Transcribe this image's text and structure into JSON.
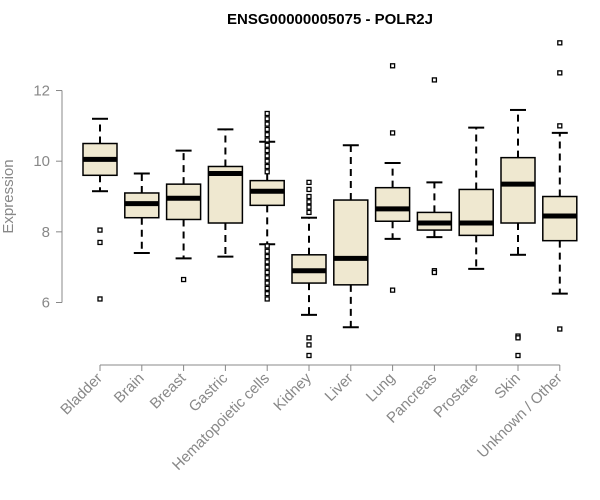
{
  "chart_data": {
    "type": "boxplot",
    "title": "ENSG00000005075 - POLR2J",
    "xlabel": "",
    "ylabel": "Expression",
    "ylim": [
      4.3,
      13.6
    ],
    "yticks": [
      6,
      8,
      10,
      12
    ],
    "colors": {
      "box_fill": "#efe8d0",
      "stroke": "#000000",
      "axis": "#888888"
    },
    "categories": [
      "Bladder",
      "Brain",
      "Breast",
      "Gastric",
      "Hematopoietic cells",
      "Kidney",
      "Liver",
      "Lung",
      "Pancreas",
      "Prostate",
      "Skin",
      "Unknown / Other"
    ],
    "boxes": [
      {
        "category": "Bladder",
        "whisker_low": 9.15,
        "q1": 9.6,
        "median": 10.05,
        "q3": 10.5,
        "whisker_high": 11.2,
        "outliers": [
          8.05,
          7.7,
          6.1
        ]
      },
      {
        "category": "Brain",
        "whisker_low": 7.4,
        "q1": 8.4,
        "median": 8.8,
        "q3": 9.1,
        "whisker_high": 9.65,
        "outliers": []
      },
      {
        "category": "Breast",
        "whisker_low": 7.25,
        "q1": 8.35,
        "median": 8.95,
        "q3": 9.35,
        "whisker_high": 10.3,
        "outliers": [
          6.65
        ]
      },
      {
        "category": "Gastric",
        "whisker_low": 7.3,
        "q1": 8.25,
        "median": 9.65,
        "q3": 9.85,
        "whisker_high": 10.9,
        "outliers": []
      },
      {
        "category": "Hematopoietic cells",
        "whisker_low": 7.65,
        "q1": 8.75,
        "median": 9.15,
        "q3": 9.45,
        "whisker_high": 10.55,
        "outliers": [
          11.35,
          11.2,
          11.05,
          10.9,
          10.75,
          10.6,
          10.45,
          10.3,
          10.15,
          10.0,
          9.85,
          9.7,
          7.6,
          7.45,
          7.3,
          7.15,
          7.0,
          6.85,
          6.7,
          6.55,
          6.4,
          6.25,
          6.1
        ]
      },
      {
        "category": "Kidney",
        "whisker_low": 5.65,
        "q1": 6.55,
        "median": 6.9,
        "q3": 7.35,
        "whisker_high": 8.4,
        "outliers": [
          9.4,
          9.2,
          9.0,
          8.85,
          8.7,
          8.55,
          5.0,
          4.8,
          4.5
        ]
      },
      {
        "category": "Liver",
        "whisker_low": 5.3,
        "q1": 6.5,
        "median": 7.25,
        "q3": 8.9,
        "whisker_high": 10.45,
        "outliers": []
      },
      {
        "category": "Lung",
        "whisker_low": 7.8,
        "q1": 8.3,
        "median": 8.65,
        "q3": 9.25,
        "whisker_high": 9.95,
        "outliers": [
          12.7,
          10.8,
          6.35
        ]
      },
      {
        "category": "Pancreas",
        "whisker_low": 7.85,
        "q1": 8.05,
        "median": 8.25,
        "q3": 8.55,
        "whisker_high": 9.4,
        "outliers": [
          12.3,
          6.9,
          6.85
        ]
      },
      {
        "category": "Prostate",
        "whisker_low": 6.95,
        "q1": 7.9,
        "median": 8.25,
        "q3": 9.2,
        "whisker_high": 10.95,
        "outliers": []
      },
      {
        "category": "Skin",
        "whisker_low": 7.35,
        "q1": 8.25,
        "median": 9.35,
        "q3": 10.1,
        "whisker_high": 11.45,
        "outliers": [
          5.05,
          5.0,
          4.5
        ]
      },
      {
        "category": "Unknown / Other",
        "whisker_low": 6.25,
        "q1": 7.75,
        "median": 8.45,
        "q3": 9.0,
        "whisker_high": 10.8,
        "outliers": [
          13.35,
          12.5,
          11.0,
          5.25
        ]
      }
    ]
  }
}
